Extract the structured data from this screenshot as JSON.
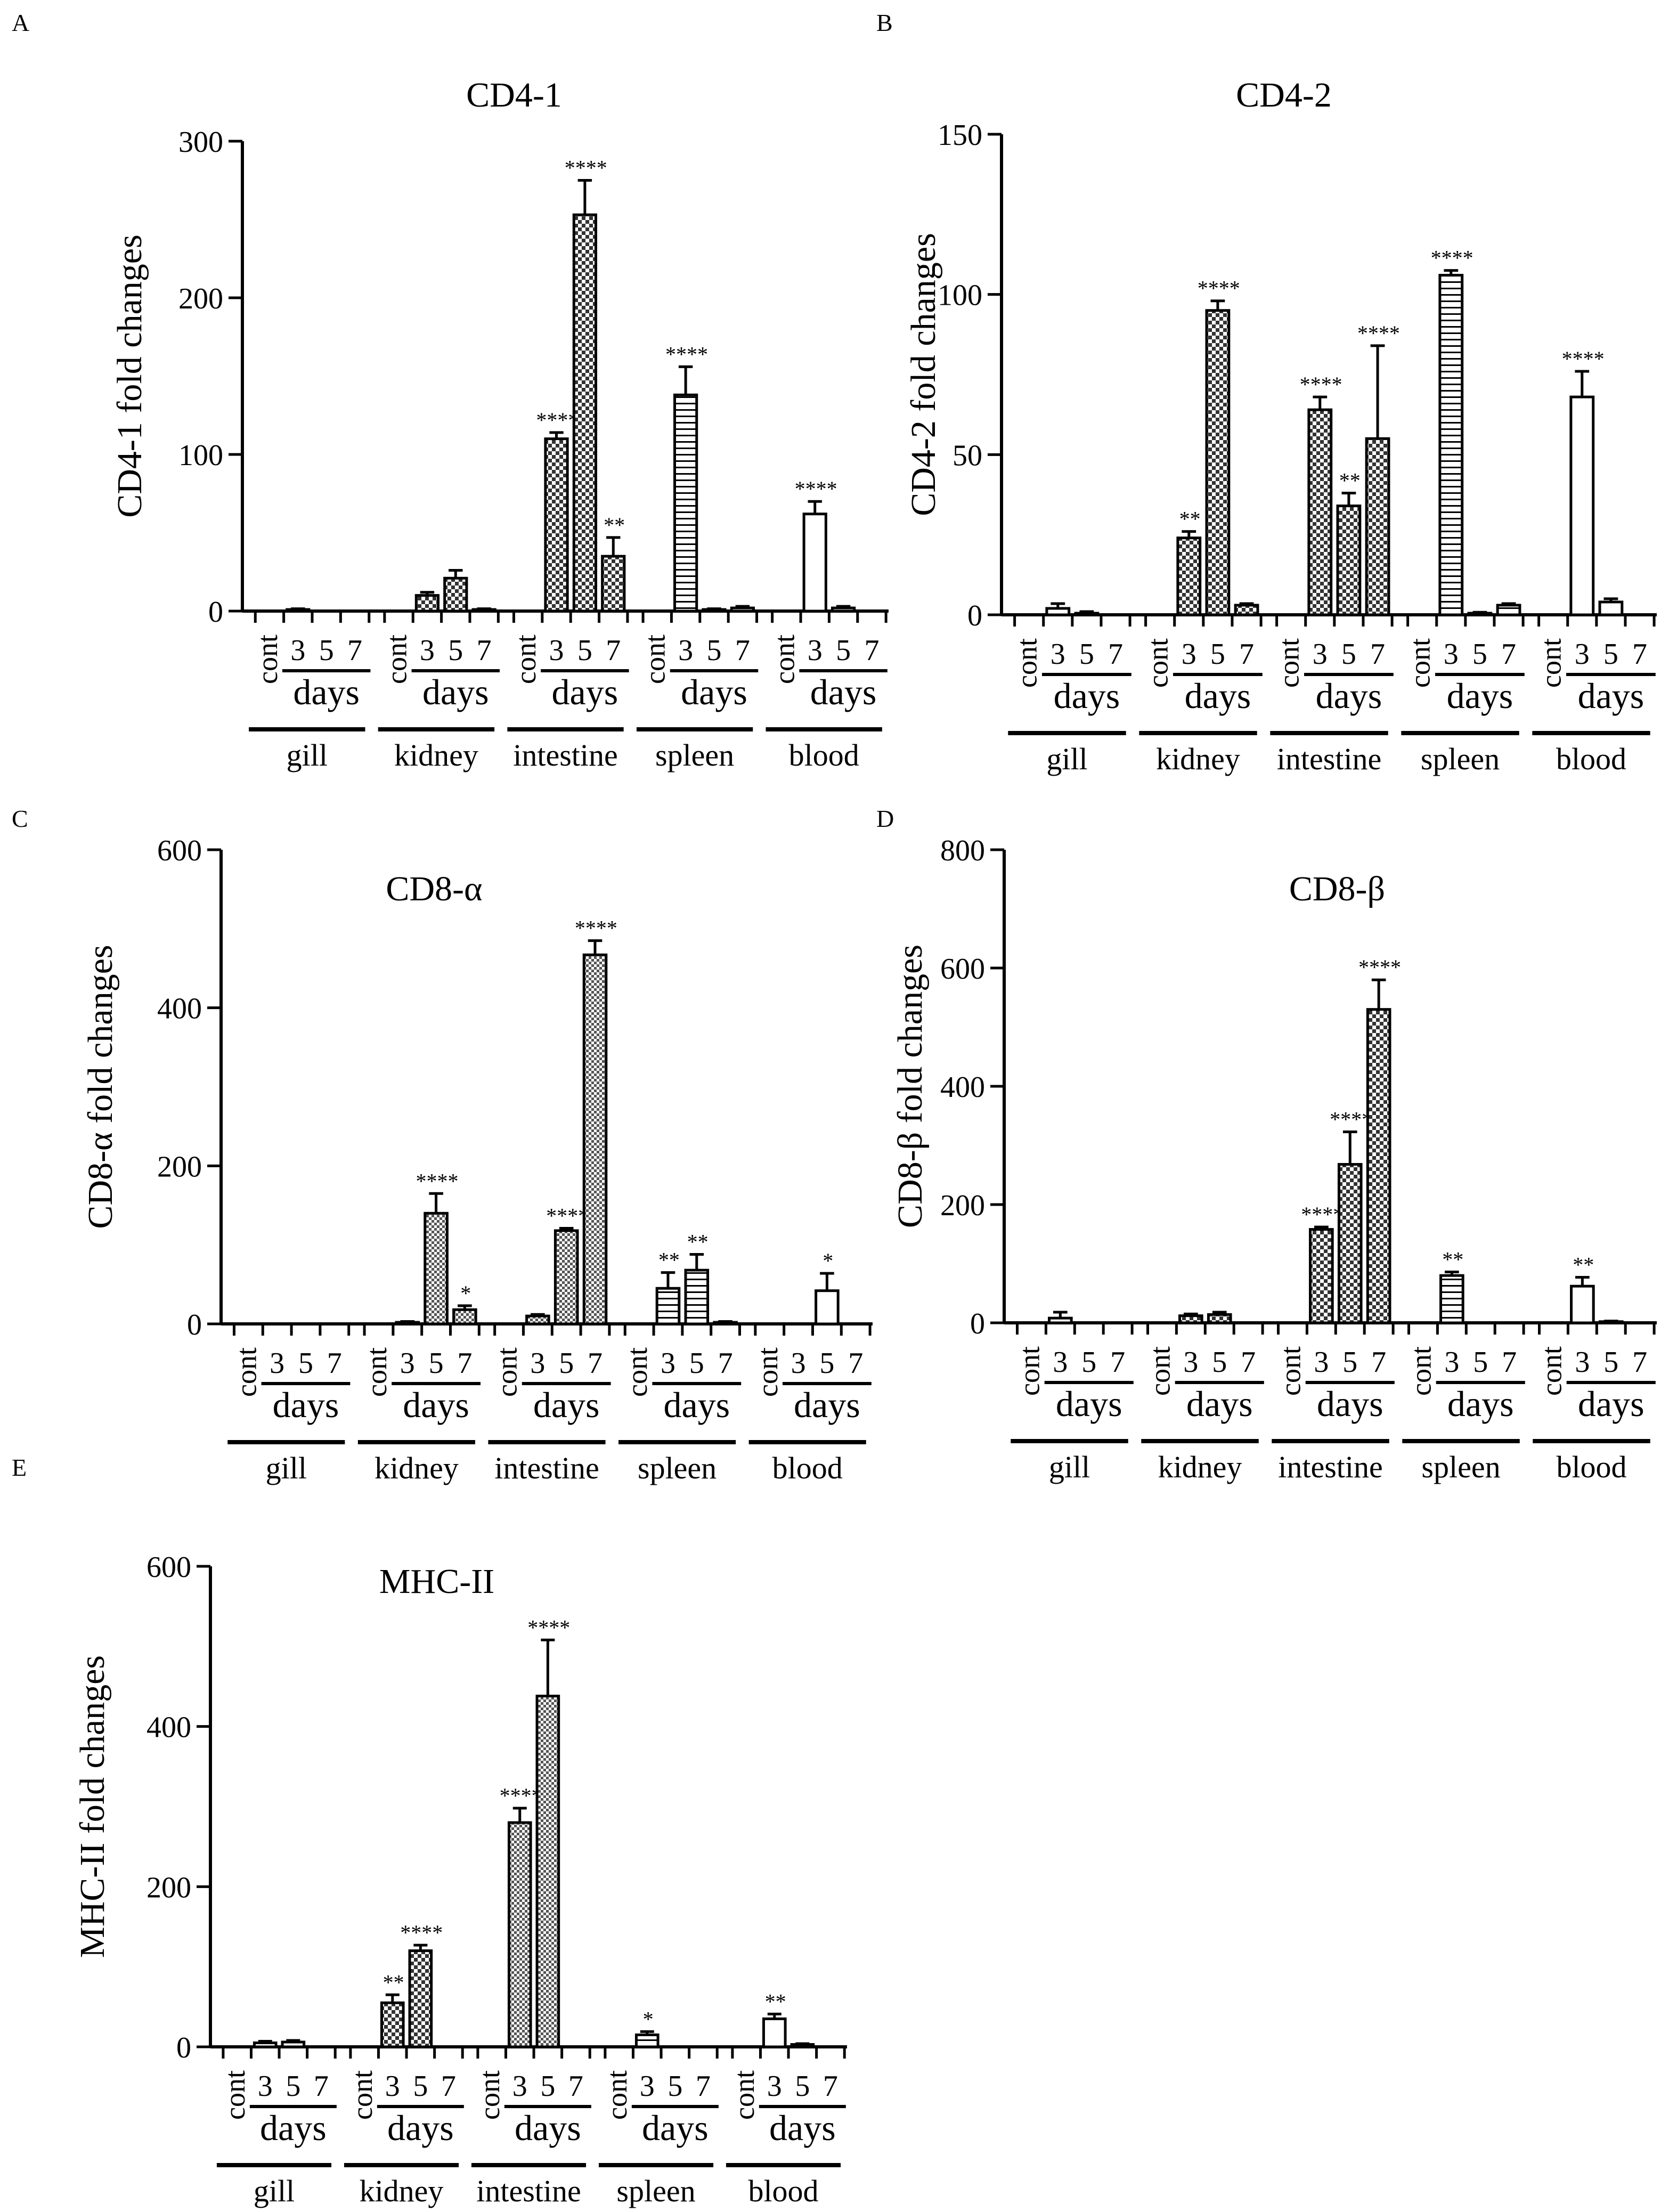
{
  "figure": {
    "description_panels": [
      "A",
      "B",
      "C",
      "D",
      "E"
    ]
  },
  "x_groups": {
    "tissues": [
      "gill",
      "kidney",
      "intestine",
      "spleen",
      "blood"
    ],
    "control_label": "cont",
    "day_labels": [
      "3",
      "5",
      "7"
    ],
    "days_label": "days"
  },
  "colors": {
    "ink": "#000000",
    "background": "#ffffff",
    "bar_dark": "#3a3a3a",
    "bar_light": "#ffffff"
  },
  "chart_data": [
    {
      "panel": "A",
      "type": "bar",
      "title": "CD4-1",
      "ylabel": "CD4-1 fold changes",
      "ylim": [
        0,
        300
      ],
      "yticks": [
        0,
        100,
        200,
        300
      ],
      "categories": [
        "gill",
        "kidney",
        "intestine",
        "spleen",
        "blood"
      ],
      "series": [
        {
          "name": "cont",
          "values": [
            0,
            0,
            0,
            0,
            0
          ]
        },
        {
          "name": "3",
          "values": [
            1,
            10,
            110,
            138,
            62
          ]
        },
        {
          "name": "5",
          "values": [
            0,
            21,
            253,
            1,
            2
          ]
        },
        {
          "name": "7",
          "values": [
            0,
            1,
            35,
            2,
            0
          ]
        }
      ],
      "errors": [
        [
          0,
          0,
          0,
          0,
          0
        ],
        [
          0.5,
          2,
          4,
          18,
          8
        ],
        [
          0,
          5,
          22,
          0.5,
          1
        ],
        [
          0,
          0.5,
          12,
          1,
          0
        ]
      ],
      "patterns": [
        "none",
        "bigcheck",
        "bigcheck",
        "hlines",
        "open"
      ],
      "significance": [
        [
          "",
          "",
          "",
          "",
          ""
        ],
        [
          "",
          "",
          "****",
          "****",
          "****"
        ],
        [
          "",
          "",
          "****",
          "",
          ""
        ],
        [
          "",
          "",
          "**",
          "",
          ""
        ]
      ]
    },
    {
      "panel": "B",
      "type": "bar",
      "title": "CD4-2",
      "ylabel": "CD4-2 fold changes",
      "ylim": [
        0,
        150
      ],
      "yticks": [
        0,
        50,
        100,
        150
      ],
      "categories": [
        "gill",
        "kidney",
        "intestine",
        "spleen",
        "blood"
      ],
      "series": [
        {
          "name": "cont",
          "values": [
            0,
            0,
            0,
            0,
            0
          ]
        },
        {
          "name": "3",
          "values": [
            2,
            24,
            64,
            106,
            68
          ]
        },
        {
          "name": "5",
          "values": [
            0.5,
            95,
            34,
            0.5,
            4
          ]
        },
        {
          "name": "7",
          "values": [
            0,
            3,
            55,
            3,
            0
          ]
        }
      ],
      "errors": [
        [
          0,
          0,
          0,
          0,
          0
        ],
        [
          1.5,
          2,
          4,
          1.5,
          8
        ],
        [
          0.5,
          3,
          4,
          0.3,
          1
        ],
        [
          0,
          0.5,
          29,
          0.5,
          0
        ]
      ],
      "patterns": [
        "none",
        "bigcheck",
        "bigcheck",
        "hlines",
        "open"
      ],
      "significance": [
        [
          "",
          "",
          "",
          "",
          ""
        ],
        [
          "",
          "**",
          "****",
          "****",
          "****"
        ],
        [
          "",
          "****",
          "**",
          "",
          ""
        ],
        [
          "",
          "",
          "****",
          "",
          ""
        ]
      ]
    },
    {
      "panel": "C",
      "type": "bar",
      "title": "CD8-α",
      "ylabel": "CD8-α fold changes",
      "ylim": [
        0,
        600
      ],
      "yticks": [
        0,
        200,
        400,
        600
      ],
      "categories": [
        "gill",
        "kidney",
        "intestine",
        "spleen",
        "blood"
      ],
      "series": [
        {
          "name": "cont",
          "values": [
            0,
            0,
            0,
            0,
            0
          ]
        },
        {
          "name": "3",
          "values": [
            0,
            2,
            10,
            45,
            0
          ]
        },
        {
          "name": "5",
          "values": [
            0,
            140,
            118,
            68,
            42
          ]
        },
        {
          "name": "7",
          "values": [
            0,
            18,
            467,
            2,
            0
          ]
        }
      ],
      "errors": [
        [
          0,
          0,
          0,
          0,
          0
        ],
        [
          0,
          1,
          2,
          20,
          0
        ],
        [
          0,
          25,
          3,
          20,
          22
        ],
        [
          0,
          5,
          18,
          1,
          0
        ]
      ],
      "patterns": [
        "none",
        "smallcheck",
        "smallcheck",
        "hlines",
        "open"
      ],
      "significance": [
        [
          "",
          "",
          "",
          "",
          ""
        ],
        [
          "",
          "",
          "",
          "**",
          ""
        ],
        [
          "",
          "****",
          "****",
          "**",
          "*"
        ],
        [
          "",
          "*",
          "****",
          "",
          ""
        ]
      ]
    },
    {
      "panel": "D",
      "type": "bar",
      "title": "CD8-β",
      "ylabel": "CD8-β fold changes",
      "ylim": [
        0,
        800
      ],
      "yticks": [
        0,
        200,
        400,
        600,
        800
      ],
      "categories": [
        "gill",
        "kidney",
        "intestine",
        "spleen",
        "blood"
      ],
      "series": [
        {
          "name": "cont",
          "values": [
            0,
            0,
            0,
            0,
            0
          ]
        },
        {
          "name": "3",
          "values": [
            8,
            12,
            158,
            80,
            62
          ]
        },
        {
          "name": "5",
          "values": [
            0,
            14,
            268,
            0,
            2
          ]
        },
        {
          "name": "7",
          "values": [
            0,
            0,
            530,
            0,
            0
          ]
        }
      ],
      "errors": [
        [
          0,
          0,
          0,
          0,
          0
        ],
        [
          10,
          3,
          4,
          6,
          15
        ],
        [
          0,
          4,
          55,
          0,
          1
        ],
        [
          0,
          0,
          50,
          0,
          0
        ]
      ],
      "patterns": [
        "none",
        "bigcheck",
        "bigcheck",
        "hlines",
        "open"
      ],
      "significance": [
        [
          "",
          "",
          "",
          "",
          ""
        ],
        [
          "",
          "",
          "****",
          "**",
          "**"
        ],
        [
          "",
          "",
          "****",
          "",
          ""
        ],
        [
          "",
          "",
          "****",
          "",
          ""
        ]
      ]
    },
    {
      "panel": "E",
      "type": "bar",
      "title": "MHC-II",
      "ylabel": "MHC-II fold changes",
      "ylim": [
        0,
        600
      ],
      "yticks": [
        0,
        200,
        400,
        600
      ],
      "categories": [
        "gill",
        "kidney",
        "intestine",
        "spleen",
        "blood"
      ],
      "series": [
        {
          "name": "cont",
          "values": [
            0,
            0,
            0,
            0,
            0
          ]
        },
        {
          "name": "3",
          "values": [
            5,
            55,
            280,
            15,
            35
          ]
        },
        {
          "name": "5",
          "values": [
            6,
            120,
            438,
            0,
            3
          ]
        },
        {
          "name": "7",
          "values": [
            0,
            0,
            0,
            0,
            0
          ]
        }
      ],
      "errors": [
        [
          0,
          0,
          0,
          0,
          0
        ],
        [
          2,
          10,
          18,
          4,
          6
        ],
        [
          2,
          7,
          70,
          0,
          1
        ],
        [
          0,
          0,
          0,
          0,
          0
        ]
      ],
      "patterns": [
        "none",
        "bigcheck",
        "smallcheck",
        "hlines",
        "open"
      ],
      "significance": [
        [
          "",
          "",
          "",
          "",
          ""
        ],
        [
          "",
          "**",
          "****",
          "*",
          "**"
        ],
        [
          "",
          "****",
          "****",
          "",
          ""
        ],
        [
          "",
          "",
          "",
          "",
          ""
        ]
      ]
    }
  ]
}
